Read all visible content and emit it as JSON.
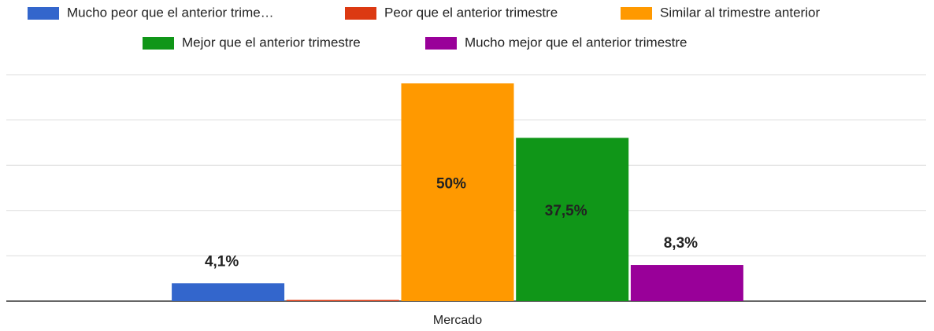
{
  "chart_data": {
    "type": "bar",
    "categories": [
      "Mercado"
    ],
    "series": [
      {
        "name": "Mucho peor que el anterior trime…",
        "color": "#3366cc",
        "values": [
          4.1
        ],
        "value_labels": [
          "4,1%"
        ]
      },
      {
        "name": "Peor que el anterior trimestre",
        "color": "#dc3912",
        "values": [
          0
        ]
      },
      {
        "name": "Similar al trimestre anterior",
        "color": "#ff9900",
        "values": [
          50
        ],
        "value_labels": [
          "50%"
        ]
      },
      {
        "name": "Mejor que el anterior trimestre",
        "color": "#109618",
        "values": [
          37.5
        ],
        "value_labels": [
          "37,5%"
        ]
      },
      {
        "name": "Mucho mejor que el anterior trimestre",
        "color": "#990099",
        "values": [
          8.3
        ],
        "value_labels": [
          "8,3%"
        ]
      }
    ],
    "ylim": [
      0,
      52
    ],
    "yticks": [
      0,
      10.4,
      20.8,
      31.2,
      41.6,
      52
    ],
    "grid": true,
    "legend": "top"
  }
}
